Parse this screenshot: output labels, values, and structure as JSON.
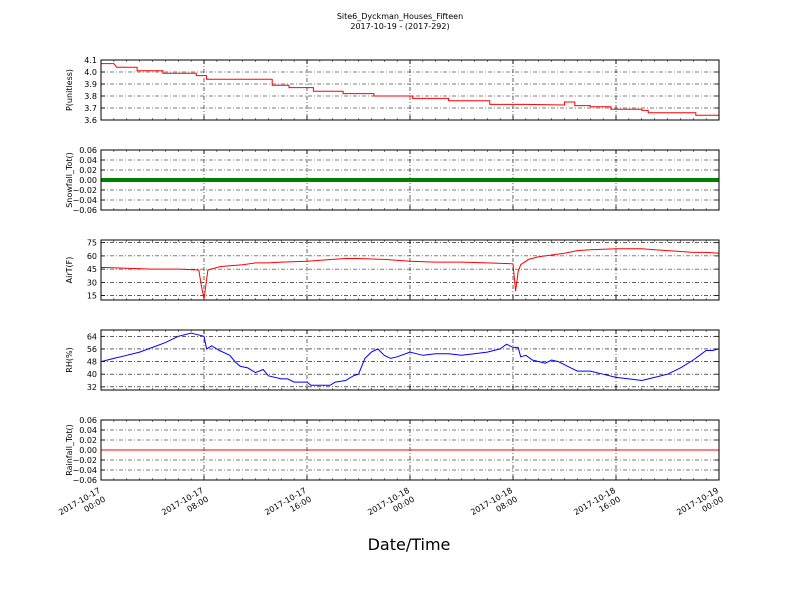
{
  "figure": {
    "title_line1": "Site6_Dyckman_Houses_Fifteen",
    "title_line2": "2017-10-19 - (2017-292)",
    "xlabel": "Date/Time"
  },
  "chart_data": {
    "type": "line",
    "x_range_hours": [
      0,
      48
    ],
    "x_tick_hours": [
      0,
      8,
      16,
      24,
      32,
      40,
      48
    ],
    "x_tick_labels": [
      [
        "2017-10-17",
        "00:00"
      ],
      [
        "2017-10-17",
        "08:00"
      ],
      [
        "2017-10-17",
        "16:00"
      ],
      [
        "2017-10-18",
        "00:00"
      ],
      [
        "2017-10-18",
        "08:00"
      ],
      [
        "2017-10-18",
        "16:00"
      ],
      [
        "2017-10-19",
        "00:00"
      ]
    ],
    "grid": true,
    "panels": [
      {
        "ylabel": "P(unitless)",
        "ylim": [
          3.6,
          4.1
        ],
        "yticks": [
          3.6,
          3.7,
          3.8,
          3.9,
          4.0,
          4.1
        ],
        "ytick_labels": [
          "3.6",
          "3.7",
          "3.8",
          "3.9",
          "4.0",
          "4.1"
        ],
        "color": "#ff0000",
        "style": "step",
        "points": [
          [
            0,
            4.07
          ],
          [
            1,
            4.07
          ],
          [
            1.2,
            4.04
          ],
          [
            2.8,
            4.04
          ],
          [
            2.8,
            4.01
          ],
          [
            4.8,
            4.01
          ],
          [
            4.8,
            3.99
          ],
          [
            7.4,
            3.99
          ],
          [
            7.4,
            3.97
          ],
          [
            8.2,
            3.97
          ],
          [
            8.2,
            3.94
          ],
          [
            13.3,
            3.94
          ],
          [
            13.3,
            3.89
          ],
          [
            14.6,
            3.89
          ],
          [
            14.6,
            3.87
          ],
          [
            16.5,
            3.87
          ],
          [
            16.5,
            3.84
          ],
          [
            18.8,
            3.84
          ],
          [
            18.8,
            3.82
          ],
          [
            21.2,
            3.82
          ],
          [
            21.2,
            3.8
          ],
          [
            24.2,
            3.8
          ],
          [
            24.2,
            3.78
          ],
          [
            27,
            3.78
          ],
          [
            27,
            3.76
          ],
          [
            30.2,
            3.76
          ],
          [
            30.2,
            3.73
          ],
          [
            33,
            3.73
          ],
          [
            36,
            3.725
          ],
          [
            36,
            3.75
          ],
          [
            36.8,
            3.75
          ],
          [
            36.8,
            3.72
          ],
          [
            38,
            3.72
          ],
          [
            38,
            3.71
          ],
          [
            39.6,
            3.71
          ],
          [
            39.6,
            3.69
          ],
          [
            42,
            3.69
          ],
          [
            42,
            3.68
          ],
          [
            42.5,
            3.68
          ],
          [
            42.5,
            3.66
          ],
          [
            46.2,
            3.66
          ],
          [
            46.2,
            3.64
          ],
          [
            48,
            3.64
          ]
        ]
      },
      {
        "ylabel": "Snowfall_Tot()",
        "ylim": [
          -0.06,
          0.06
        ],
        "yticks": [
          -0.06,
          -0.04,
          -0.02,
          0.0,
          0.02,
          0.04,
          0.06
        ],
        "ytick_labels": [
          "−0.06",
          "−0.04",
          "−0.02",
          "0.00",
          "0.02",
          "0.04",
          "0.06"
        ],
        "color": "#008000",
        "style": "thick",
        "points": [
          [
            0,
            0
          ],
          [
            48,
            0
          ]
        ]
      },
      {
        "ylabel": "AirT(F)",
        "ylim": [
          10,
          78
        ],
        "yticks": [
          15,
          30,
          45,
          60,
          75
        ],
        "ytick_labels": [
          "15",
          "30",
          "45",
          "60",
          "75"
        ],
        "color": "#ff0000",
        "style": "line",
        "points": [
          [
            0,
            47
          ],
          [
            2,
            46
          ],
          [
            4,
            45
          ],
          [
            6,
            45
          ],
          [
            7.6,
            44
          ],
          [
            7.8,
            26
          ],
          [
            8.0,
            11
          ],
          [
            8.3,
            44
          ],
          [
            9.3,
            48
          ],
          [
            11,
            50
          ],
          [
            12,
            52
          ],
          [
            13,
            52
          ],
          [
            14,
            53
          ],
          [
            16,
            54
          ],
          [
            18,
            56
          ],
          [
            19,
            57
          ],
          [
            20,
            57
          ],
          [
            22,
            56
          ],
          [
            24,
            54
          ],
          [
            26,
            53
          ],
          [
            28,
            53
          ],
          [
            30,
            52
          ],
          [
            32,
            51
          ],
          [
            32.2,
            20
          ],
          [
            32.4,
            42
          ],
          [
            32.6,
            50
          ],
          [
            33.2,
            56
          ],
          [
            34,
            59
          ],
          [
            35,
            61
          ],
          [
            36,
            63
          ],
          [
            37,
            66
          ],
          [
            38,
            67
          ],
          [
            40,
            68
          ],
          [
            41,
            68
          ],
          [
            42,
            68
          ],
          [
            43,
            67
          ],
          [
            44,
            66
          ],
          [
            45,
            65
          ],
          [
            46,
            64
          ],
          [
            47,
            64
          ],
          [
            48,
            63
          ]
        ]
      },
      {
        "ylabel": "RH(%)",
        "ylim": [
          30,
          68
        ],
        "yticks": [
          32,
          40,
          48,
          56,
          64
        ],
        "ytick_labels": [
          "32",
          "40",
          "48",
          "56",
          "64"
        ],
        "color": "#0000ff",
        "style": "line",
        "points": [
          [
            0,
            48
          ],
          [
            1,
            50
          ],
          [
            2,
            52
          ],
          [
            3,
            54
          ],
          [
            4,
            57
          ],
          [
            5,
            60
          ],
          [
            6,
            64
          ],
          [
            7,
            66
          ],
          [
            7.5,
            65
          ],
          [
            8,
            64
          ],
          [
            8.2,
            56
          ],
          [
            8.6,
            58
          ],
          [
            9.2,
            55
          ],
          [
            10,
            52
          ],
          [
            10.4,
            48
          ],
          [
            10.8,
            45
          ],
          [
            11.4,
            44
          ],
          [
            12,
            41
          ],
          [
            12.6,
            43
          ],
          [
            13,
            39
          ],
          [
            14,
            37
          ],
          [
            14.5,
            37
          ],
          [
            15,
            35
          ],
          [
            16,
            35
          ],
          [
            16.3,
            33
          ],
          [
            17.4,
            33
          ],
          [
            17.8,
            33
          ],
          [
            18.2,
            35
          ],
          [
            19,
            36
          ],
          [
            19.6,
            39
          ],
          [
            20,
            40
          ],
          [
            20.5,
            50
          ],
          [
            21,
            54
          ],
          [
            21.5,
            56
          ],
          [
            22,
            52
          ],
          [
            22.5,
            50
          ],
          [
            23,
            51
          ],
          [
            24,
            54
          ],
          [
            24.5,
            53
          ],
          [
            25,
            52
          ],
          [
            26,
            53
          ],
          [
            27,
            53
          ],
          [
            28,
            52
          ],
          [
            29,
            53
          ],
          [
            30,
            54
          ],
          [
            31,
            56
          ],
          [
            31.5,
            59
          ],
          [
            32,
            57
          ],
          [
            32.4,
            57
          ],
          [
            32.6,
            51
          ],
          [
            33,
            52
          ],
          [
            33.5,
            49
          ],
          [
            34,
            48
          ],
          [
            34.5,
            47
          ],
          [
            35,
            49
          ],
          [
            35.5,
            48
          ],
          [
            36,
            46
          ],
          [
            36.5,
            44
          ],
          [
            37,
            42
          ],
          [
            38,
            42
          ],
          [
            39,
            40
          ],
          [
            40,
            38
          ],
          [
            41,
            37
          ],
          [
            42,
            36
          ],
          [
            43,
            38
          ],
          [
            44,
            40
          ],
          [
            45,
            44
          ],
          [
            46,
            49
          ],
          [
            46.5,
            52
          ],
          [
            47,
            55
          ],
          [
            47.5,
            55
          ],
          [
            48,
            56
          ]
        ]
      },
      {
        "ylabel": "Rainfall_Tot()",
        "ylim": [
          -0.06,
          0.06
        ],
        "yticks": [
          -0.06,
          -0.04,
          -0.02,
          0.0,
          0.02,
          0.04,
          0.06
        ],
        "ytick_labels": [
          "−0.06",
          "−0.04",
          "−0.02",
          "0.00",
          "0.02",
          "0.04",
          "0.06"
        ],
        "color": "#ff0000",
        "style": "line",
        "points": [
          [
            0,
            0
          ],
          [
            48,
            0
          ]
        ]
      }
    ]
  }
}
